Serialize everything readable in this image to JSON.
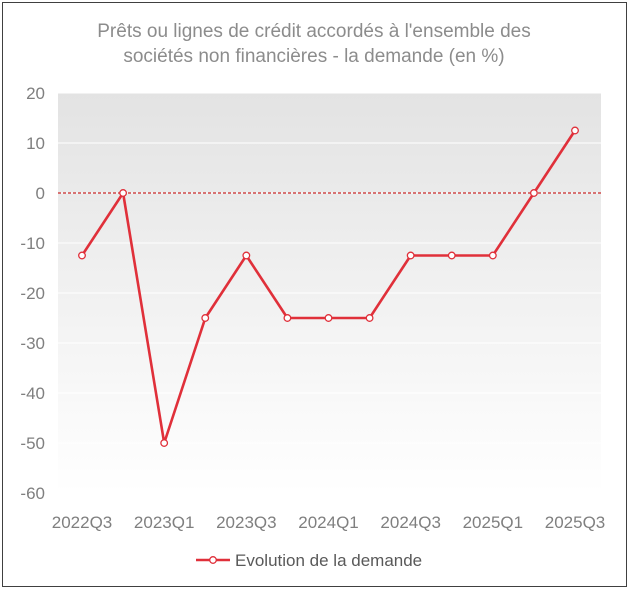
{
  "chart_data": {
    "type": "line",
    "title_lines": [
      "Prêts ou lignes de crédit accordés à l'ensemble des",
      "sociétés non financières - la demande (en %)"
    ],
    "x": [
      "2022Q3",
      "2022Q4",
      "2023Q1",
      "2023Q2",
      "2023Q3",
      "2023Q4",
      "2024Q1",
      "2024Q2",
      "2024Q3",
      "2024Q4",
      "2025Q1",
      "2025Q2",
      "2025Q3"
    ],
    "x_tick_labels": [
      "2022Q3",
      "2023Q1",
      "2023Q3",
      "2024Q1",
      "2024Q3",
      "2025Q1",
      "2025Q3"
    ],
    "series": [
      {
        "name": "Evolution de la demande",
        "values": [
          -12.5,
          0,
          -50,
          -25,
          -12.5,
          -25,
          -25,
          -25,
          -12.5,
          -12.5,
          -12.5,
          0,
          12.5
        ],
        "color": "#e0303a"
      }
    ],
    "ylim": [
      -60,
      20
    ],
    "yticks": [
      20,
      10,
      0,
      -10,
      -20,
      -30,
      -40,
      -50,
      -60
    ],
    "zero_line": {
      "value": 0,
      "style": "dashed",
      "color": "#cc2a2a"
    },
    "legend_position": "bottom",
    "grid": "horizontal",
    "plot_gradient": [
      "#e3e3e3",
      "#ffffff"
    ]
  }
}
